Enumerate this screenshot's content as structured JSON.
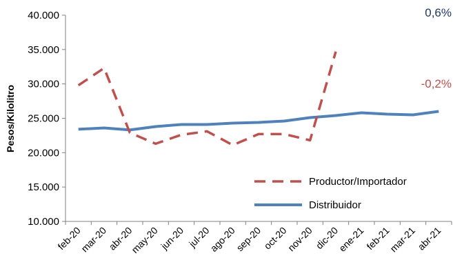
{
  "chart_data": {
    "type": "line",
    "title": "",
    "xlabel": "",
    "ylabel": "Pesos/Kilolitro",
    "ylim": [
      10000,
      40000
    ],
    "yticks": [
      "10.000",
      "15.000",
      "20.000",
      "25.000",
      "30.000",
      "35.000",
      "40.000"
    ],
    "categories": [
      "feb-20",
      "mar-20",
      "abr-20",
      "may-20",
      "jun-20",
      "jul-20",
      "ago-20",
      "sep-20",
      "oct-20",
      "nov-20",
      "dic-20",
      "ene-21",
      "feb-21",
      "mar-21",
      "abr-21"
    ],
    "series": [
      {
        "name": "Productor/Importador",
        "color": "#C0504D",
        "style": "dashed",
        "values": [
          29800,
          32300,
          22900,
          21300,
          22600,
          23100,
          21100,
          22700,
          22700,
          21800,
          34700,
          null,
          null,
          null,
          null
        ]
      },
      {
        "name": "Distribuidor",
        "color": "#4F81BD",
        "style": "solid",
        "values": [
          23400,
          23600,
          23300,
          23800,
          24100,
          24100,
          24300,
          24400,
          24600,
          25100,
          25400,
          25800,
          25600,
          25500,
          26000
        ]
      }
    ],
    "legend": "bottom-right",
    "grid": false,
    "annotations": [
      {
        "text": "0,6%",
        "color": "#1F3864"
      },
      {
        "text": "-0,2%",
        "color": "#C0504D"
      }
    ]
  }
}
